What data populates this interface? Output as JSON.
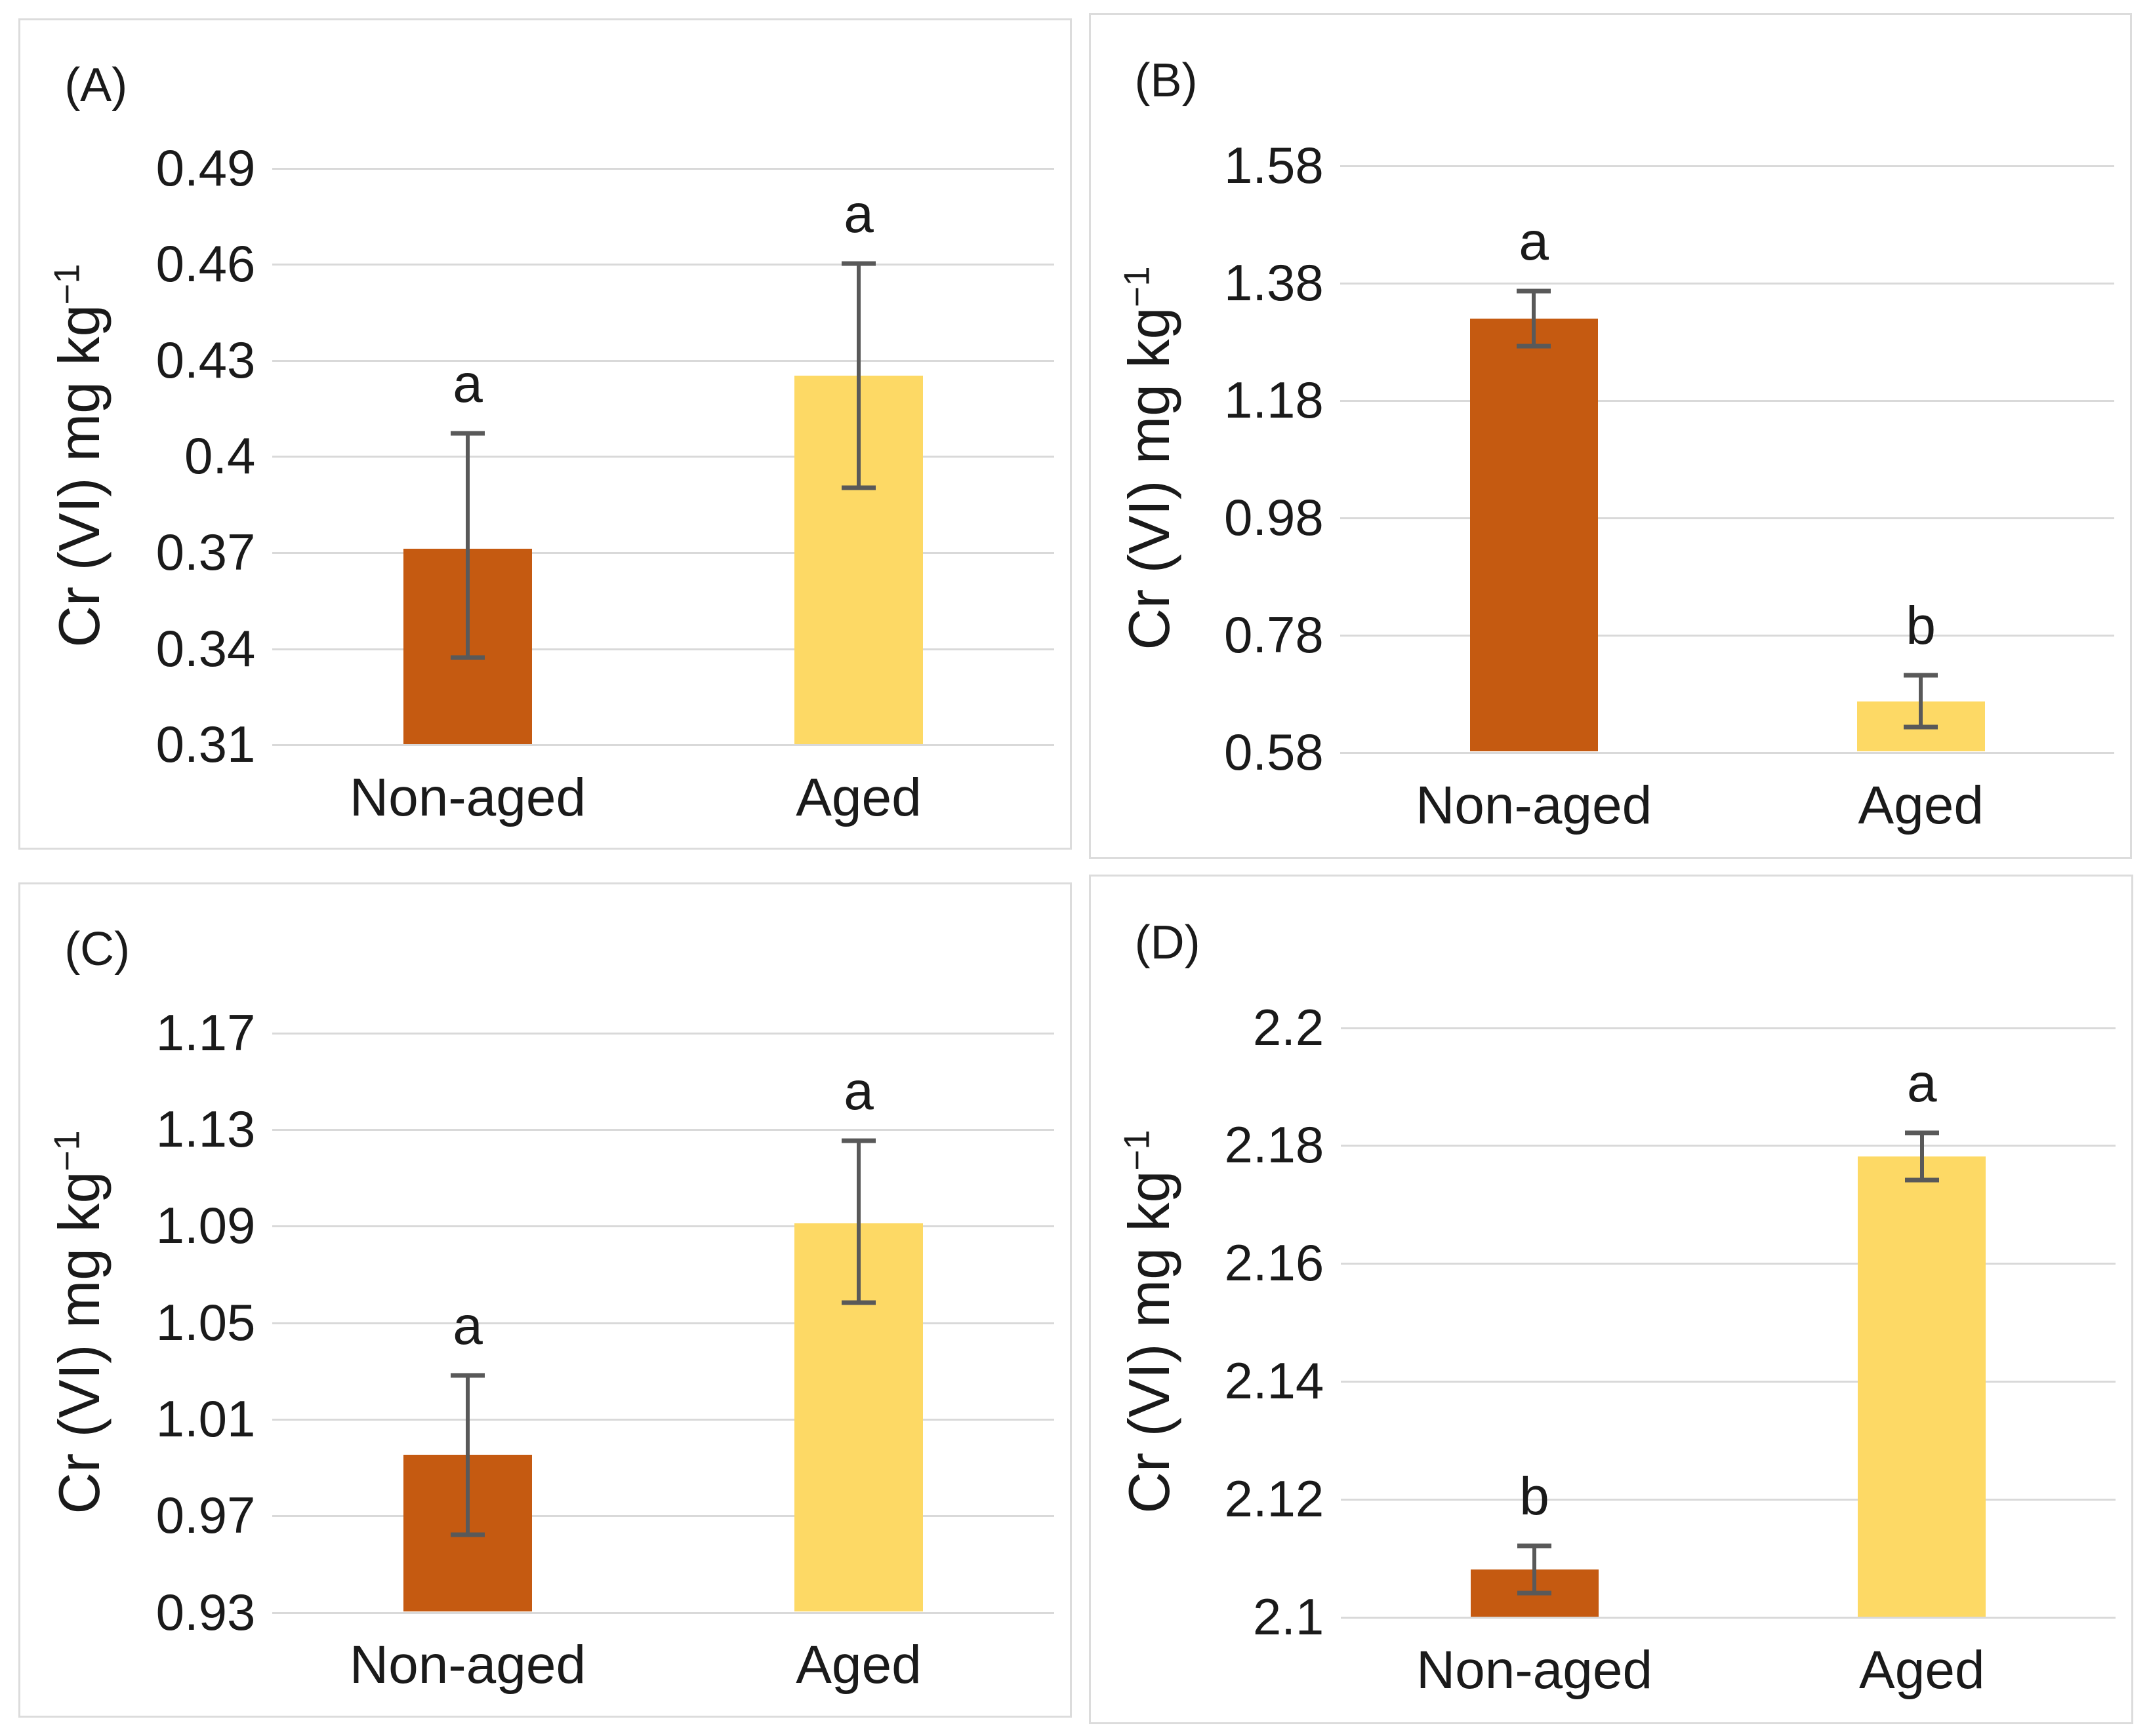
{
  "figure": {
    "background": "#FFFFFF",
    "bar_colors": [
      "#C55A11",
      "#FDD965"
    ],
    "error_bar_color": "#595959",
    "gridline_color": "#D9D9D9",
    "panel_border_color": "#DCDCDC",
    "text_color": "#1A1A1A",
    "ylabel_prefix": "Cr (VI) mg kg",
    "ylabel_superscript": "−1",
    "categories": [
      "Non-aged",
      "Aged"
    ]
  },
  "chart_data": [
    {
      "type": "bar",
      "panel_label": "(A)",
      "categories": [
        "Non-aged",
        "Aged"
      ],
      "values": [
        0.371,
        0.425
      ],
      "error_low": [
        0.337,
        0.39
      ],
      "error_high": [
        0.407,
        0.46
      ],
      "sig_letters": [
        "a",
        "a"
      ],
      "title": "",
      "xlabel": "",
      "ylabel": "Cr (VI) mg kg⁻¹",
      "ylim": [
        0.31,
        0.49
      ],
      "ytick_labels": [
        "0.49",
        "0.46",
        "0.43",
        "0.4",
        "0.37",
        "0.34",
        "0.31"
      ],
      "grid": true,
      "legend": false
    },
    {
      "type": "bar",
      "panel_label": "(B)",
      "categories": [
        "Non-aged",
        "Aged"
      ],
      "values": [
        1.318,
        0.665
      ],
      "error_low": [
        1.271,
        0.622
      ],
      "error_high": [
        1.365,
        0.71
      ],
      "sig_letters": [
        "a",
        "b"
      ],
      "title": "",
      "xlabel": "",
      "ylabel": "Cr (VI) mg kg⁻¹",
      "ylim": [
        0.58,
        1.58
      ],
      "ytick_labels": [
        "1.58",
        "1.38",
        "1.18",
        "0.98",
        "0.78",
        "0.58"
      ],
      "grid": true,
      "legend": false
    },
    {
      "type": "bar",
      "panel_label": "(C)",
      "categories": [
        "Non-aged",
        "Aged"
      ],
      "values": [
        0.995,
        1.091
      ],
      "error_low": [
        0.962,
        1.058
      ],
      "error_high": [
        1.028,
        1.125
      ],
      "sig_letters": [
        "a",
        "a"
      ],
      "title": "",
      "xlabel": "",
      "ylabel": "Cr (VI) mg kg⁻¹",
      "ylim": [
        0.93,
        1.17
      ],
      "ytick_labels": [
        "1.17",
        "1.13",
        "1.09",
        "1.05",
        "1.01",
        "0.97",
        "0.93"
      ],
      "grid": true,
      "legend": false
    },
    {
      "type": "bar",
      "panel_label": "(D)",
      "categories": [
        "Non-aged",
        "Aged"
      ],
      "values": [
        2.108,
        2.178
      ],
      "error_low": [
        2.104,
        2.174
      ],
      "error_high": [
        2.112,
        2.182
      ],
      "sig_letters": [
        "b",
        "a"
      ],
      "title": "",
      "xlabel": "",
      "ylabel": "Cr (VI) mg kg⁻¹",
      "ylim": [
        2.1,
        2.2
      ],
      "ytick_labels": [
        "2.2",
        "2.18",
        "2.16",
        "2.14",
        "2.12",
        "2.1"
      ],
      "grid": true,
      "legend": false
    }
  ]
}
